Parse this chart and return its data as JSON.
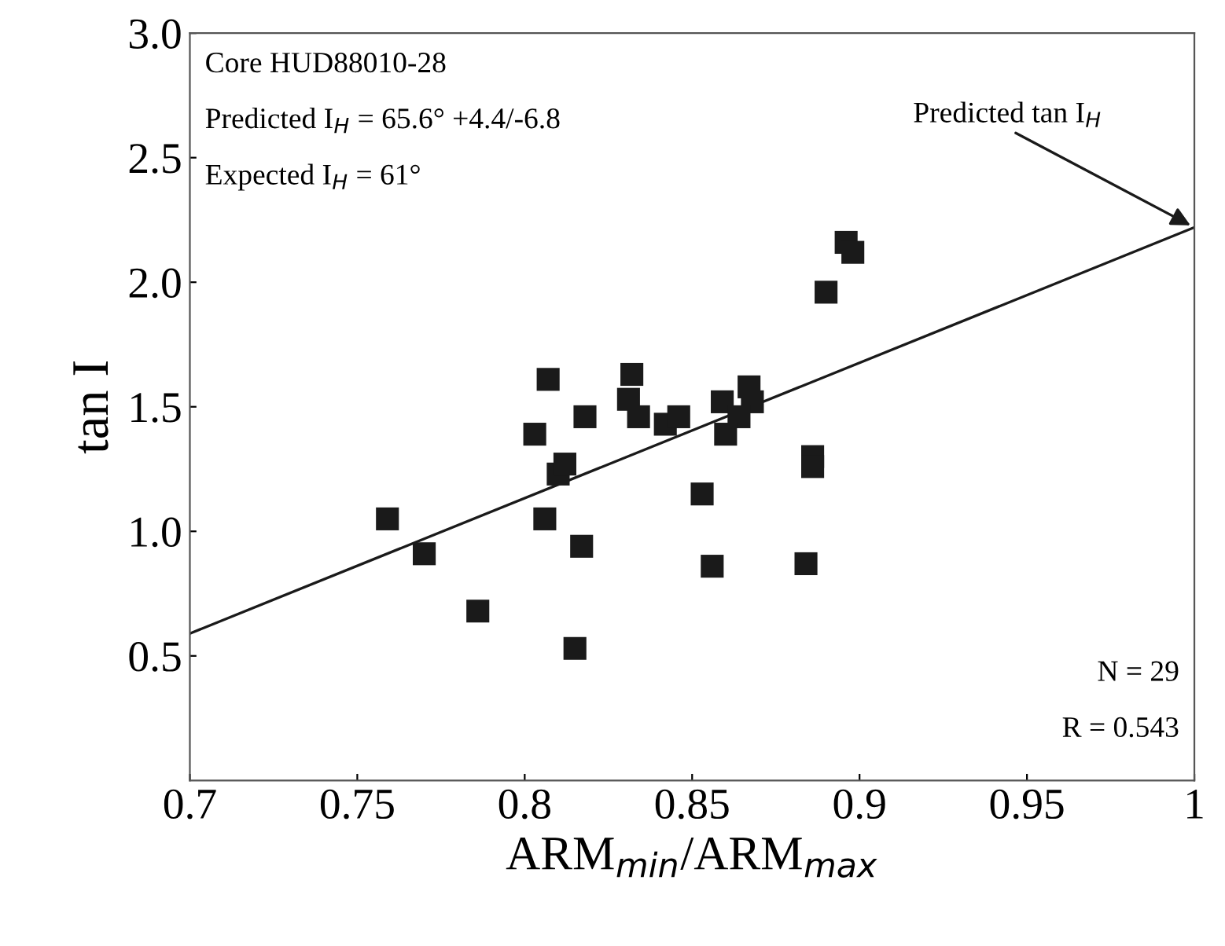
{
  "chart_data": {
    "type": "scatter",
    "xlabel": "ARM$_{min}$/ARM$_{max}$",
    "ylabel": "tan I",
    "xlim": [
      0.7,
      1
    ],
    "xticks": [
      0.7,
      0.75,
      0.8,
      0.85,
      0.9,
      0.95,
      1
    ],
    "ylim": [
      0,
      3
    ],
    "yticks": [
      {
        "value": 0.5,
        "label": "0.5"
      },
      {
        "value": 1.0,
        "label": "1.0"
      },
      {
        "value": 1.5,
        "label": "1.5"
      },
      {
        "value": 2.0,
        "label": "2.0"
      },
      {
        "value": 2.5,
        "label": "2.5"
      },
      {
        "value": 3.0,
        "label": "3.0"
      }
    ],
    "grid": false,
    "series": [
      {
        "marker": "square",
        "color": "#1a1a1a",
        "x": [
          0.759,
          0.77,
          0.786,
          0.806,
          0.81,
          0.812,
          0.817,
          0.815,
          0.807,
          0.803,
          0.818,
          0.832,
          0.831,
          0.834,
          0.842,
          0.846,
          0.859,
          0.867,
          0.868,
          0.864,
          0.86,
          0.886,
          0.896,
          0.898,
          0.89,
          0.886,
          0.853,
          0.856,
          0.884
        ],
        "values": [
          1.05,
          0.91,
          0.68,
          1.05,
          1.23,
          1.27,
          0.94,
          0.53,
          1.61,
          1.39,
          1.46,
          1.63,
          1.53,
          1.46,
          1.43,
          1.46,
          1.52,
          1.58,
          1.52,
          1.46,
          1.39,
          1.3,
          2.16,
          2.12,
          1.96,
          1.26,
          1.15,
          0.86,
          0.87
        ]
      },
      {
        "type": "line",
        "color": "#1a1a1a",
        "x": [
          0.7,
          1.0
        ],
        "values": [
          0.59,
          2.22
        ]
      }
    ],
    "annotations": [
      "Core HUD88010-28",
      "Predicted I$_{H}$ = 65.6° +4.4/-6.8",
      "Expected I$_{H}$ = 61°",
      {
        "text": "Predicted tan I$_{H}$",
        "x": 1.0,
        "y": 2.22
      },
      "N = 29",
      "R = 0.543"
    ]
  }
}
